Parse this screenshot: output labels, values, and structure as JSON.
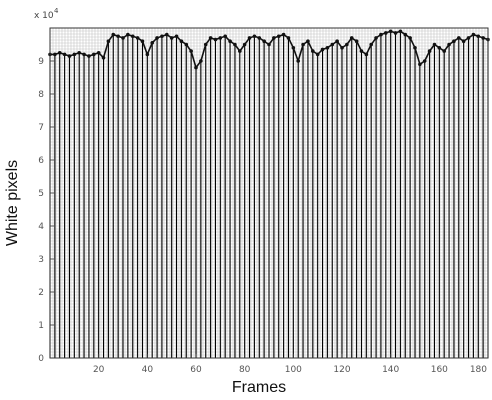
{
  "chart_data": {
    "type": "bar",
    "xlabel": "Frames",
    "ylabel": "White pixels",
    "y_multiplier_label": "x 10",
    "y_multiplier_exponent": "4",
    "xlim": [
      0,
      180
    ],
    "ylim": [
      0,
      10
    ],
    "xticks": [
      20,
      40,
      60,
      80,
      100,
      120,
      140,
      160,
      180
    ],
    "yticks": [
      0,
      1,
      2,
      3,
      4,
      5,
      6,
      7,
      8,
      9
    ],
    "grid": true,
    "bar_color": "#000000",
    "line_color": "#111111",
    "series": [
      {
        "x": [
          0,
          2,
          4,
          6,
          8,
          10,
          12,
          14,
          16,
          18,
          20,
          22,
          24,
          26,
          28,
          30,
          32,
          34,
          36,
          38,
          40,
          42,
          44,
          46,
          48,
          50,
          52,
          54,
          56,
          58,
          60,
          62,
          64,
          66,
          68,
          70,
          72,
          74,
          76,
          78,
          80,
          82,
          84,
          86,
          88,
          90,
          92,
          94,
          96,
          98,
          100,
          102,
          104,
          106,
          108,
          110,
          112,
          114,
          116,
          118,
          120,
          122,
          124,
          126,
          128,
          130,
          132,
          134,
          136,
          138,
          140,
          142,
          144,
          146,
          148,
          150,
          152,
          154,
          156,
          158,
          160,
          162,
          164,
          166,
          168,
          170,
          172,
          174,
          176,
          178,
          180
        ],
        "values": [
          9.2,
          9.2,
          9.25,
          9.2,
          9.15,
          9.2,
          9.25,
          9.2,
          9.15,
          9.2,
          9.25,
          9.1,
          9.6,
          9.8,
          9.75,
          9.7,
          9.8,
          9.75,
          9.7,
          9.6,
          9.2,
          9.55,
          9.7,
          9.75,
          9.8,
          9.7,
          9.75,
          9.6,
          9.5,
          9.3,
          8.8,
          9.0,
          9.5,
          9.7,
          9.65,
          9.7,
          9.75,
          9.6,
          9.5,
          9.3,
          9.5,
          9.7,
          9.75,
          9.7,
          9.6,
          9.5,
          9.7,
          9.75,
          9.8,
          9.7,
          9.4,
          9.0,
          9.5,
          9.6,
          9.3,
          9.2,
          9.35,
          9.4,
          9.5,
          9.6,
          9.4,
          9.5,
          9.7,
          9.6,
          9.3,
          9.2,
          9.5,
          9.7,
          9.8,
          9.85,
          9.9,
          9.85,
          9.9,
          9.8,
          9.7,
          9.4,
          8.9,
          9.0,
          9.3,
          9.5,
          9.4,
          9.3,
          9.5,
          9.6,
          9.7,
          9.6,
          9.7,
          9.8,
          9.75,
          9.7,
          9.65
        ]
      }
    ]
  }
}
